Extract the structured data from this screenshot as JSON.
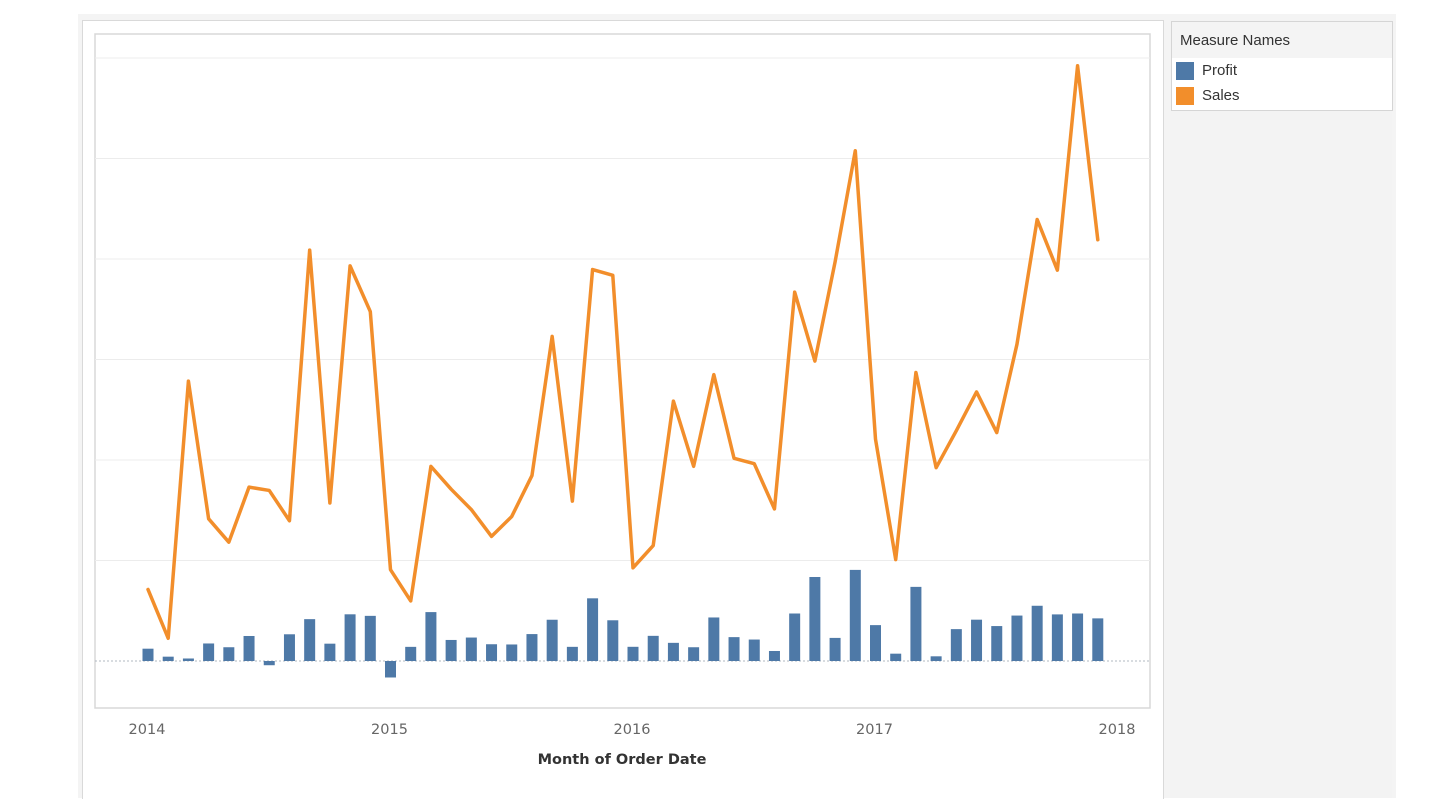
{
  "legend": {
    "title": "Measure Names",
    "items": [
      {
        "label": "Profit",
        "color": "#4e79a7"
      },
      {
        "label": "Sales",
        "color": "#f28e2b"
      }
    ]
  },
  "chart_data": {
    "type": "bar",
    "xlabel": "Month of Order Date",
    "ylabel": "",
    "x_ticks": [
      "2014",
      "2015",
      "2016",
      "2017",
      "2018"
    ],
    "x_range": [
      "2014-01",
      "2018-01"
    ],
    "y_ticks_shown": false,
    "grid": true,
    "legend_position": "right",
    "categories": [
      "2014-01",
      "2014-02",
      "2014-03",
      "2014-04",
      "2014-05",
      "2014-06",
      "2014-07",
      "2014-08",
      "2014-09",
      "2014-10",
      "2014-11",
      "2014-12",
      "2015-01",
      "2015-02",
      "2015-03",
      "2015-04",
      "2015-05",
      "2015-06",
      "2015-07",
      "2015-08",
      "2015-09",
      "2015-10",
      "2015-11",
      "2015-12",
      "2016-01",
      "2016-02",
      "2016-03",
      "2016-04",
      "2016-05",
      "2016-06",
      "2016-07",
      "2016-08",
      "2016-09",
      "2016-10",
      "2016-11",
      "2016-12",
      "2017-01",
      "2017-02",
      "2017-03",
      "2017-04",
      "2017-05",
      "2017-06",
      "2017-07",
      "2017-08",
      "2017-09",
      "2017-10",
      "2017-11",
      "2017-12"
    ],
    "series": [
      {
        "name": "Profit",
        "mark": "bar",
        "color": "#4e79a7",
        "values": [
          2450,
          862,
          499,
          3488,
          2739,
          4977,
          -841,
          5317,
          8329,
          3448,
          9292,
          8984,
          -3281,
          2814,
          9732,
          4188,
          4668,
          3336,
          3289,
          5356,
          8210,
          2817,
          12474,
          8104,
          2824,
          5005,
          3612,
          2738,
          8663,
          4750,
          4271,
          1992,
          9452,
          16717,
          4596,
          18130,
          7140,
          1458,
          14752,
          933,
          6342,
          8223,
          6952,
          9041,
          10992,
          9275,
          9452,
          8484
        ]
      },
      {
        "name": "Sales",
        "mark": "line",
        "color": "#f28e2b",
        "values": [
          14237,
          4520,
          55691,
          28295,
          23648,
          34595,
          33946,
          27909,
          81777,
          31453,
          78629,
          69546,
          18174,
          11951,
          38726,
          34195,
          30132,
          24797,
          28765,
          36899,
          64596,
          31819,
          77907,
          76752,
          18542,
          22979,
          51716,
          38750,
          56988,
          40344,
          39262,
          30265,
          73410,
          59687,
          79412,
          101550,
          44157,
          20177,
          57403,
          38471,
          45839,
          53552,
          45457,
          63024,
          87866,
          77777,
          118448,
          83829
        ]
      }
    ],
    "profit_zero_on_sales_scale": 0
  }
}
